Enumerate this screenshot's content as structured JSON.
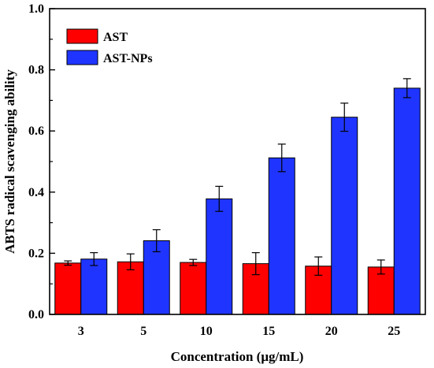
{
  "chart_data": {
    "type": "bar",
    "xlabel": "Concentration (μg/mL)",
    "ylabel": "ABTS radical scavenging ability",
    "categories": [
      "3",
      "5",
      "10",
      "15",
      "20",
      "25"
    ],
    "ylim": [
      0.0,
      1.0
    ],
    "yticks": [
      "0.0",
      "0.2",
      "0.4",
      "0.6",
      "0.8",
      "1.0"
    ],
    "grid": false,
    "legend_position": "top-left",
    "series": [
      {
        "name": "AST",
        "color": "#ff0000",
        "values": [
          0.168,
          0.172,
          0.17,
          0.166,
          0.158,
          0.155
        ],
        "errors": [
          0.007,
          0.026,
          0.01,
          0.036,
          0.03,
          0.023
        ]
      },
      {
        "name": "AST-NPs",
        "color": "#1f35ff",
        "values": [
          0.181,
          0.241,
          0.378,
          0.512,
          0.645,
          0.74
        ],
        "errors": [
          0.021,
          0.036,
          0.041,
          0.045,
          0.046,
          0.031
        ]
      }
    ]
  }
}
